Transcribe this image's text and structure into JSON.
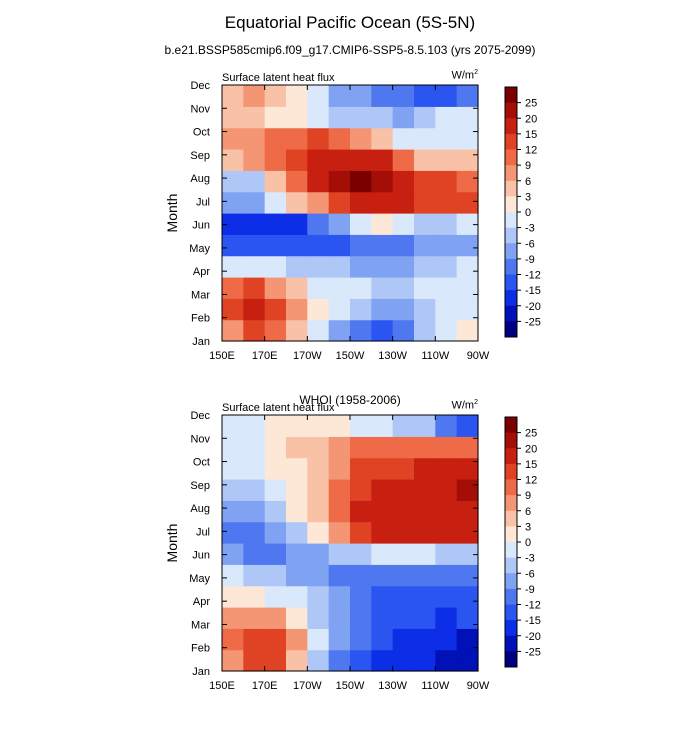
{
  "figure": {
    "title": "Equatorial Pacific Ocean (5S-5N)",
    "subtitle": "b.e21.BSSP585cmip6.f09_g17.CMIP6-SSP5-8.5.103 (yrs 2075-2099)"
  },
  "colors": {
    "levels": [
      "#00007f",
      "#0011b7",
      "#0b2ee6",
      "#2b55f0",
      "#4f78f0",
      "#7fa2f2",
      "#aec7f7",
      "#dae8fb",
      "#fde8d8",
      "#f9c1a6",
      "#f49574",
      "#ef6a47",
      "#e04323",
      "#c71f10",
      "#a30e07",
      "#7a0000"
    ]
  },
  "chart_data": [
    {
      "type": "heatmap",
      "panel_title": "",
      "left_label": "Surface latent heat flux",
      "units_base": "W/m",
      "units_sup": "2",
      "ylabel": "Month",
      "x_ticks": [
        "150E",
        "170E",
        "170W",
        "150W",
        "130W",
        "110W",
        "90W"
      ],
      "y_ticks": [
        "Jan",
        "Feb",
        "Mar",
        "Apr",
        "May",
        "Jun",
        "Jul",
        "Aug",
        "Sep",
        "Oct",
        "Nov",
        "Dec"
      ],
      "colorbar_labels": [
        "25",
        "20",
        "15",
        "12",
        "9",
        "6",
        "3",
        "0",
        "-3",
        "-6",
        "-9",
        "-12",
        "-15",
        "-20",
        "-25"
      ],
      "values": [
        [
          6,
          13,
          10,
          4,
          -2,
          -8,
          -11,
          -13,
          -11,
          -6,
          -2,
          1
        ],
        [
          14,
          18,
          14,
          8,
          2,
          -3,
          -6,
          -8,
          -7,
          -4,
          -2,
          -1
        ],
        [
          10,
          12,
          8,
          3,
          -1,
          -2,
          -3,
          -4,
          -4,
          -3,
          -2,
          -1
        ],
        [
          -2,
          -2,
          -3,
          -4,
          -5,
          -6,
          -7,
          -8,
          -7,
          -6,
          -5,
          -3
        ],
        [
          -13,
          -14,
          -15,
          -15,
          -14,
          -13,
          -12,
          -11,
          -10,
          -9,
          -9,
          -9
        ],
        [
          -17,
          -20,
          -19,
          -16,
          -12,
          -7,
          -3,
          0,
          -3,
          -6,
          -4,
          -3
        ],
        [
          -7,
          -9,
          -3,
          3,
          8,
          14,
          17,
          18,
          17,
          14,
          13,
          12
        ],
        [
          -5,
          -4,
          5,
          10,
          16,
          22,
          25,
          24,
          19,
          14,
          12,
          10
        ],
        [
          3,
          6,
          10,
          14,
          17,
          19,
          18,
          15,
          9,
          4,
          5,
          4
        ],
        [
          6,
          8,
          10,
          11,
          12,
          10,
          7,
          4,
          -1,
          -3,
          -1,
          -2
        ],
        [
          4,
          3,
          2,
          0,
          -2,
          -4,
          -5,
          -6,
          -7,
          -5,
          -3,
          -3
        ],
        [
          4,
          6,
          4,
          1,
          -3,
          -7,
          -9,
          -10,
          -12,
          -14,
          -14,
          -12
        ]
      ]
    },
    {
      "type": "heatmap",
      "panel_title": "WHOI (1958-2006)",
      "left_label": "Surface latent heat flux",
      "units_base": "W/m",
      "units_sup": "2",
      "ylabel": "Month",
      "x_ticks": [
        "150E",
        "170E",
        "170W",
        "150W",
        "130W",
        "110W",
        "90W"
      ],
      "y_ticks": [
        "Jan",
        "Feb",
        "Mar",
        "Apr",
        "May",
        "Jun",
        "Jul",
        "Aug",
        "Sep",
        "Oct",
        "Nov",
        "Dec"
      ],
      "colorbar_labels": [
        "25",
        "20",
        "15",
        "12",
        "9",
        "6",
        "3",
        "0",
        "-3",
        "-6",
        "-9",
        "-12",
        "-15",
        "-20",
        "-25"
      ],
      "values": [
        [
          8,
          13,
          12,
          4,
          -4,
          -10,
          -13,
          -16,
          -18,
          -20,
          -22,
          -23
        ],
        [
          10,
          14,
          14,
          6,
          -2,
          -8,
          -12,
          -15,
          -17,
          -18,
          -20,
          -21
        ],
        [
          6,
          8,
          6,
          1,
          -4,
          -8,
          -11,
          -13,
          -14,
          -15,
          -16,
          -15
        ],
        [
          1,
          1,
          -1,
          -3,
          -6,
          -9,
          -11,
          -13,
          -14,
          -15,
          -15,
          -14
        ],
        [
          -3,
          -4,
          -5,
          -7,
          -9,
          -10,
          -11,
          -12,
          -12,
          -12,
          -12,
          -11
        ],
        [
          -9,
          -10,
          -10,
          -9,
          -8,
          -6,
          -4,
          -3,
          -3,
          -3,
          -4,
          -4
        ],
        [
          -10,
          -11,
          -8,
          -4,
          1,
          7,
          12,
          15,
          16,
          17,
          18,
          17
        ],
        [
          -7,
          -8,
          -4,
          0,
          4,
          11,
          16,
          18,
          16,
          18,
          19,
          17
        ],
        [
          -5,
          -5,
          -2,
          1,
          4,
          10,
          14,
          16,
          15,
          17,
          18,
          20
        ],
        [
          -3,
          -3,
          0,
          2,
          4,
          8,
          12,
          14,
          14,
          15,
          16,
          17
        ],
        [
          -2,
          -1,
          1,
          3,
          4,
          6,
          9,
          10,
          10,
          11,
          11,
          10
        ],
        [
          -3,
          -2,
          0,
          1,
          1,
          0,
          -1,
          -2,
          -4,
          -6,
          -10,
          -14
        ]
      ]
    }
  ]
}
